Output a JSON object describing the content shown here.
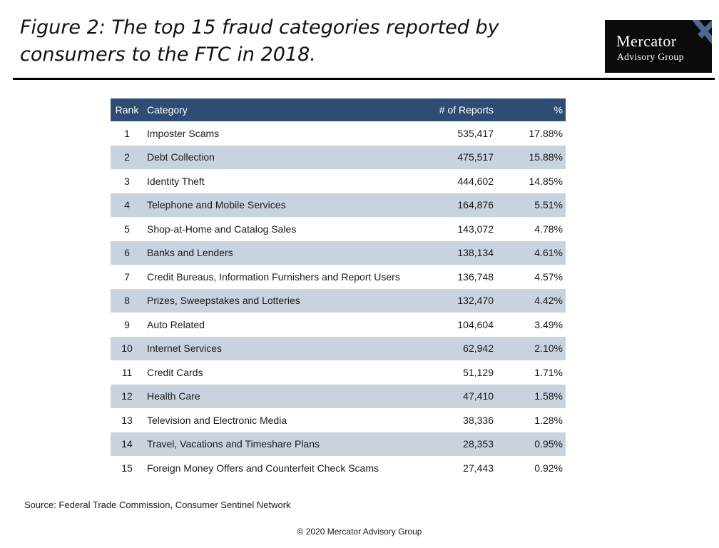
{
  "title": "Figure 2: The top 15 fraud categories reported by consumers to the FTC in 2018.",
  "logo": {
    "line1": "Mercator",
    "line2": "Advisory Group",
    "accent_color": "#4e6a92"
  },
  "colors": {
    "header_bg": "#2f4c74",
    "header_text": "#ffffff",
    "band_row": "#c9d3e0",
    "rule": "#000000"
  },
  "source": "Source: Federal Trade Commission, Consumer Sentinel Network",
  "copyright": "© 2020 Mercator Advisory Group",
  "chart_data": {
    "type": "table",
    "columns": [
      "Rank",
      "Category",
      "# of Reports",
      "%"
    ],
    "rows": [
      [
        "1",
        "Imposter Scams",
        "535,417",
        "17.88%"
      ],
      [
        "2",
        "Debt Collection",
        "475,517",
        "15.88%"
      ],
      [
        "3",
        "Identity Theft",
        "444,602",
        "14.85%"
      ],
      [
        "4",
        "Telephone and Mobile Services",
        "164,876",
        "5.51%"
      ],
      [
        "5",
        "Shop-at-Home and Catalog Sales",
        "143,072",
        "4.78%"
      ],
      [
        "6",
        "Banks and Lenders",
        "138,134",
        "4.61%"
      ],
      [
        "7",
        "Credit Bureaus, Information Furnishers and Report Users",
        "136,748",
        "4.57%"
      ],
      [
        "8",
        "Prizes, Sweepstakes and Lotteries",
        "132,470",
        "4.42%"
      ],
      [
        "9",
        "Auto Related",
        "104,604",
        "3.49%"
      ],
      [
        "10",
        "Internet Services",
        "62,942",
        "2.10%"
      ],
      [
        "11",
        "Credit Cards",
        "51,129",
        "1.71%"
      ],
      [
        "12",
        "Health Care",
        "47,410",
        "1.58%"
      ],
      [
        "13",
        "Television and Electronic Media",
        "38,336",
        "1.28%"
      ],
      [
        "14",
        "Travel, Vacations and Timeshare Plans",
        "28,353",
        "0.95%"
      ],
      [
        "15",
        "Foreign Money Offers and Counterfeit Check Scams",
        "27,443",
        "0.92%"
      ]
    ]
  }
}
